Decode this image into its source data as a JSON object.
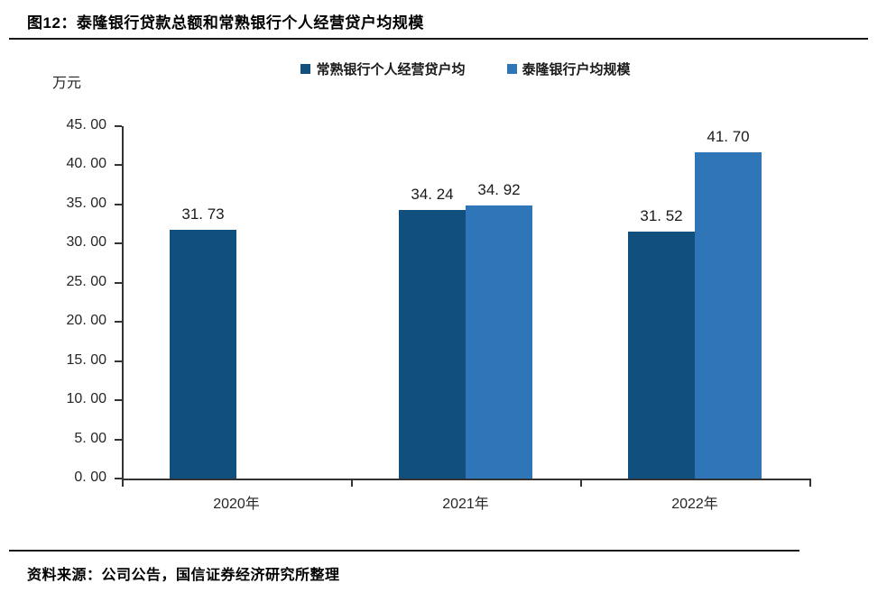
{
  "figure": {
    "title": "图12：泰隆银行贷款总额和常熟银行个人经营贷户均规模",
    "source": "资料来源：公司公告，国信证券经济研究所整理",
    "unit_label": "万元"
  },
  "colors": {
    "series_dark": "#114F7F",
    "series_light": "#2E76B8",
    "axis": "#333333",
    "rule": "#1a1a1a"
  },
  "legend": [
    {
      "label": "常熟银行个人经营贷户均",
      "color": "#114F7F"
    },
    {
      "label": "泰隆银行户均规模",
      "color": "#2E76B8"
    }
  ],
  "chart_data": {
    "type": "bar",
    "title": "泰隆银行贷款总额和常熟银行个人经营贷户均规模",
    "categories": [
      "2020年",
      "2021年",
      "2022年"
    ],
    "series": [
      {
        "name": "常熟银行个人经营贷户均",
        "color": "#114F7F",
        "values": [
          31.73,
          34.24,
          31.52
        ],
        "labels": [
          "31. 73",
          "34. 24",
          "31. 52"
        ]
      },
      {
        "name": "泰隆银行户均规模",
        "color": "#2E76B8",
        "values": [
          null,
          34.92,
          41.7
        ],
        "labels": [
          null,
          "34. 92",
          "41. 70"
        ]
      }
    ],
    "xlabel": "",
    "ylabel": "万元",
    "ylim": [
      0,
      45
    ],
    "ytick_step": 5,
    "ytick_labels": [
      "0. 00",
      "5. 00",
      "10. 00",
      "15. 00",
      "20. 00",
      "25. 00",
      "30. 00",
      "35. 00",
      "40. 00",
      "45. 00"
    ],
    "grid": false,
    "legend_position": "top-center"
  }
}
